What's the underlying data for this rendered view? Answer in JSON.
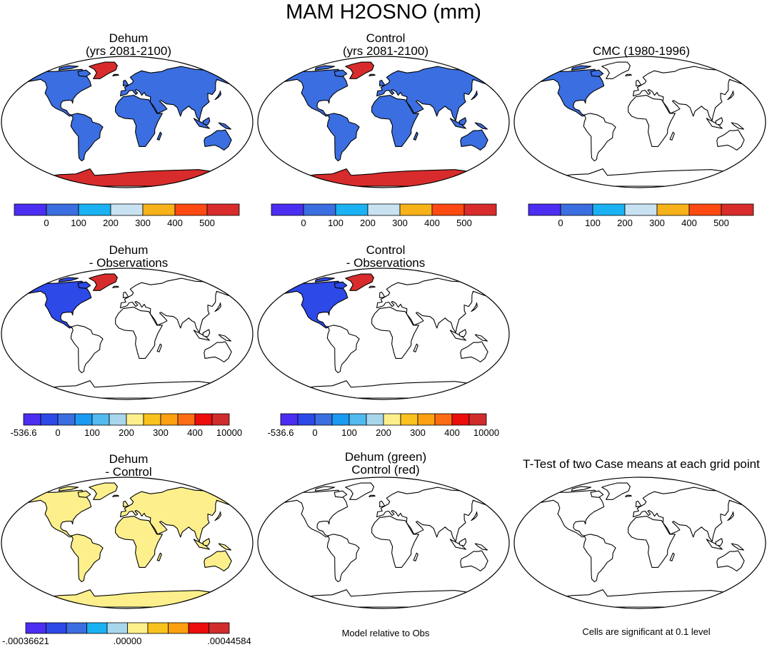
{
  "title": "MAM H2OSNO (mm)",
  "panels": [
    {
      "title": "Dehum\n(yrs 2081-2100)",
      "fill": "model"
    },
    {
      "title": "Control\n(yrs 2081-2100)",
      "fill": "model"
    },
    {
      "title": "CMC (1980-1996)",
      "fill": "obs"
    },
    {
      "title": "Dehum\n- Observations",
      "fill": "diff"
    },
    {
      "title": "Control\n- Observations",
      "fill": "diff"
    },
    {
      "title": "Dehum\n- Control",
      "fill": "dctl"
    },
    {
      "title": "Dehum (green)\nControl (red)",
      "fill": "none"
    },
    {
      "title": "T-Test of two Case means at each grid point",
      "fill": "none"
    }
  ],
  "captions": {
    "model_relative": "Model relative to Obs",
    "significance": "Cells are significant at 0.1 level"
  },
  "chart_data": [
    {
      "type": "heatmap",
      "name": "Dehum (yrs 2081-2100)",
      "colorbar": {
        "colors": [
          "#4b2ef2",
          "#3b6ee0",
          "#1ab2f2",
          "#c8e2f2",
          "#f7b21a",
          "#fc4a12",
          "#d82c2c"
        ],
        "labels": [
          "0",
          "100",
          "200",
          "300",
          "400",
          "500"
        ]
      }
    },
    {
      "type": "heatmap",
      "name": "Control (yrs 2081-2100)",
      "colorbar": {
        "colors": [
          "#4b2ef2",
          "#3b6ee0",
          "#1ab2f2",
          "#c8e2f2",
          "#f7b21a",
          "#fc4a12",
          "#d82c2c"
        ],
        "labels": [
          "0",
          "100",
          "200",
          "300",
          "400",
          "500"
        ]
      }
    },
    {
      "type": "heatmap",
      "name": "CMC (1980-1996)",
      "colorbar": {
        "colors": [
          "#4b2ef2",
          "#3b6ee0",
          "#1ab2f2",
          "#c8e2f2",
          "#f7b21a",
          "#fc4a12",
          "#d82c2c"
        ],
        "labels": [
          "0",
          "100",
          "200",
          "300",
          "400",
          "500"
        ]
      }
    },
    {
      "type": "heatmap",
      "name": "Dehum - Observations",
      "colorbar": {
        "colors": [
          "#4b2ef2",
          "#2d49e8",
          "#3b6ee0",
          "#1a9af2",
          "#52baee",
          "#a8d6ec",
          "#fdf08c",
          "#f9c21c",
          "#fca011",
          "#fc6c14",
          "#ec0c0c",
          "#d02c2c"
        ],
        "labels": [
          "-536.6",
          "0",
          "100",
          "200",
          "300",
          "400",
          "10000"
        ]
      }
    },
    {
      "type": "heatmap",
      "name": "Control - Observations",
      "colorbar": {
        "colors": [
          "#4b2ef2",
          "#2d49e8",
          "#3b6ee0",
          "#1a9af2",
          "#52baee",
          "#a8d6ec",
          "#fdf08c",
          "#f9c21c",
          "#fca011",
          "#fc6c14",
          "#ec0c0c",
          "#d02c2c"
        ],
        "labels": [
          "-536.6",
          "0",
          "100",
          "200",
          "300",
          "400",
          "10000"
        ]
      }
    },
    {
      "type": "heatmap",
      "name": "Dehum - Control",
      "colorbar": {
        "colors": [
          "#4b2ef2",
          "#2d49e8",
          "#3b6ee0",
          "#1ab2f2",
          "#a8d6ec",
          "#fdf08c",
          "#f9c21c",
          "#fca011",
          "#ec0c0c",
          "#d02c2c"
        ],
        "labels": [
          "-.00036621",
          ".00000",
          ".00044584"
        ]
      }
    }
  ]
}
